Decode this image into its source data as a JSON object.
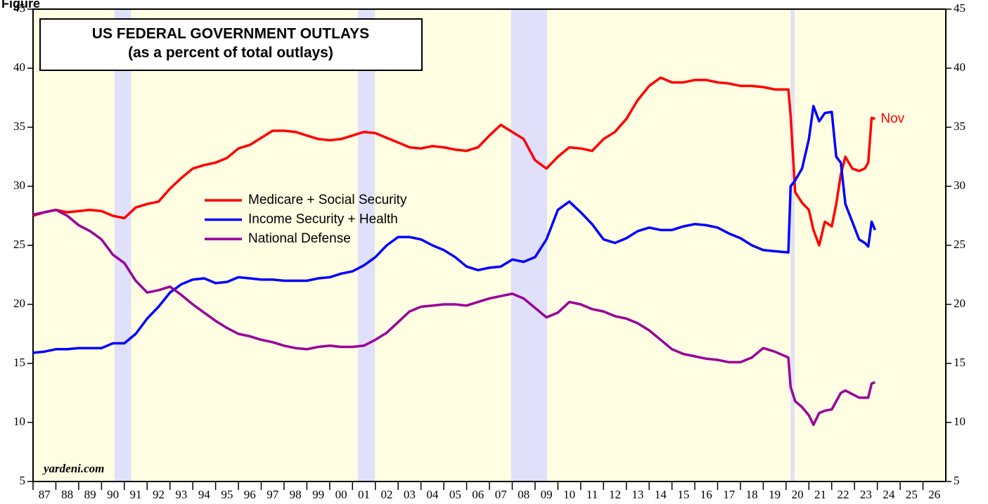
{
  "chart_data": {
    "type": "line",
    "figure_label": "Figure",
    "title": "US FEDERAL GOVERNMENT OUTLAYS",
    "subtitle": "(as a percent of total outlays)",
    "source": "yardeni.com",
    "annotation": "Nov",
    "legend": "middle-left",
    "xlim": [
      1987,
      2027
    ],
    "xticks": [
      {
        "value": 1987.5,
        "label": "87"
      },
      {
        "value": 1988.5,
        "label": "88"
      },
      {
        "value": 1989.5,
        "label": "89"
      },
      {
        "value": 1990.5,
        "label": "90"
      },
      {
        "value": 1991.5,
        "label": "91"
      },
      {
        "value": 1992.5,
        "label": "92"
      },
      {
        "value": 1993.5,
        "label": "93"
      },
      {
        "value": 1994.5,
        "label": "94"
      },
      {
        "value": 1995.5,
        "label": "95"
      },
      {
        "value": 1996.5,
        "label": "96"
      },
      {
        "value": 1997.5,
        "label": "97"
      },
      {
        "value": 1998.5,
        "label": "98"
      },
      {
        "value": 1999.5,
        "label": "99"
      },
      {
        "value": 2000.5,
        "label": "00"
      },
      {
        "value": 2001.5,
        "label": "01"
      },
      {
        "value": 2002.5,
        "label": "02"
      },
      {
        "value": 2003.5,
        "label": "03"
      },
      {
        "value": 2004.5,
        "label": "04"
      },
      {
        "value": 2005.5,
        "label": "05"
      },
      {
        "value": 2006.5,
        "label": "06"
      },
      {
        "value": 2007.5,
        "label": "07"
      },
      {
        "value": 2008.5,
        "label": "08"
      },
      {
        "value": 2009.5,
        "label": "09"
      },
      {
        "value": 2010.5,
        "label": "10"
      },
      {
        "value": 2011.5,
        "label": "11"
      },
      {
        "value": 2012.5,
        "label": "12"
      },
      {
        "value": 2013.5,
        "label": "13"
      },
      {
        "value": 2014.5,
        "label": "14"
      },
      {
        "value": 2015.5,
        "label": "15"
      },
      {
        "value": 2016.5,
        "label": "16"
      },
      {
        "value": 2017.5,
        "label": "17"
      },
      {
        "value": 2018.5,
        "label": "18"
      },
      {
        "value": 2019.5,
        "label": "19"
      },
      {
        "value": 2020.5,
        "label": "20"
      },
      {
        "value": 2021.5,
        "label": "21"
      },
      {
        "value": 2022.5,
        "label": "22"
      },
      {
        "value": 2023.5,
        "label": "23"
      },
      {
        "value": 2024.5,
        "label": "24"
      },
      {
        "value": 2025.5,
        "label": "25"
      },
      {
        "value": 2026.5,
        "label": "26"
      }
    ],
    "ylim": [
      5,
      45
    ],
    "yticks": [
      5,
      10,
      15,
      20,
      25,
      30,
      35,
      40,
      45
    ],
    "y2lim": [
      5,
      45
    ],
    "y2ticks": [
      5,
      10,
      15,
      20,
      25,
      30,
      35,
      40,
      45
    ],
    "shaded_periods": [
      [
        1990.57,
        1991.3
      ],
      [
        2001.24,
        2001.98
      ],
      [
        2007.95,
        2009.53
      ],
      [
        2020.2,
        2020.37
      ]
    ],
    "shade_color": "#e0e0fa",
    "background_color": "#fffde2",
    "x": [
      1987.0,
      1987.5,
      1988.0,
      1988.5,
      1989.0,
      1989.5,
      1990.0,
      1990.5,
      1991.0,
      1991.5,
      1992.0,
      1992.5,
      1993.0,
      1993.5,
      1994.0,
      1994.5,
      1995.0,
      1995.5,
      1996.0,
      1996.5,
      1997.0,
      1997.5,
      1998.0,
      1998.5,
      1999.0,
      1999.5,
      2000.0,
      2000.5,
      2001.0,
      2001.5,
      2002.0,
      2002.5,
      2003.0,
      2003.5,
      2004.0,
      2004.5,
      2005.0,
      2005.5,
      2006.0,
      2006.5,
      2007.0,
      2007.5,
      2008.0,
      2008.5,
      2009.0,
      2009.5,
      2010.0,
      2010.5,
      2011.0,
      2011.5,
      2012.0,
      2012.5,
      2013.0,
      2013.5,
      2014.0,
      2014.5,
      2015.0,
      2015.5,
      2016.0,
      2016.5,
      2017.0,
      2017.5,
      2018.0,
      2018.5,
      2019.0,
      2019.5,
      2020.1,
      2020.2,
      2020.4,
      2020.7,
      2021.0,
      2021.2,
      2021.45,
      2021.7,
      2022.0,
      2022.2,
      2022.4,
      2022.6,
      2022.9,
      2023.2,
      2023.45,
      2023.6,
      2023.75,
      2023.9
    ],
    "series": [
      {
        "name": "Medicare + Social Security",
        "color": "#ff0000",
        "values": [
          27.5,
          27.8,
          28.0,
          27.8,
          27.9,
          28.0,
          27.9,
          27.5,
          27.3,
          28.2,
          28.5,
          28.7,
          29.8,
          30.7,
          31.5,
          31.8,
          32.0,
          32.4,
          33.2,
          33.5,
          34.1,
          34.7,
          34.7,
          34.6,
          34.3,
          34.0,
          33.9,
          34.0,
          34.3,
          34.6,
          34.5,
          34.1,
          33.7,
          33.3,
          33.2,
          33.4,
          33.3,
          33.1,
          33.0,
          33.3,
          34.3,
          35.2,
          34.6,
          34.0,
          32.2,
          31.5,
          32.5,
          33.3,
          33.2,
          33.0,
          34.0,
          34.6,
          35.7,
          37.3,
          38.5,
          39.2,
          38.8,
          38.8,
          39.0,
          39.0,
          38.8,
          38.7,
          38.5,
          38.5,
          38.4,
          38.2,
          38.2,
          36.0,
          29.5,
          28.6,
          28.0,
          26.3,
          25.0,
          27.0,
          26.6,
          28.5,
          31.0,
          32.5,
          31.5,
          31.3,
          31.5,
          32.0,
          35.8,
          35.7
        ]
      },
      {
        "name": "Income Security + Health",
        "color": "#0000ff",
        "values": [
          15.9,
          16.0,
          16.2,
          16.2,
          16.3,
          16.3,
          16.3,
          16.7,
          16.7,
          17.5,
          18.8,
          19.8,
          21.0,
          21.7,
          22.1,
          22.2,
          21.8,
          21.9,
          22.3,
          22.2,
          22.1,
          22.1,
          22.0,
          22.0,
          22.0,
          22.2,
          22.3,
          22.6,
          22.8,
          23.3,
          24.0,
          25.0,
          25.7,
          25.7,
          25.5,
          25.0,
          24.6,
          24.0,
          23.2,
          22.9,
          23.1,
          23.2,
          23.8,
          23.6,
          24.0,
          25.5,
          28.0,
          28.7,
          27.8,
          26.8,
          25.5,
          25.2,
          25.6,
          26.2,
          26.5,
          26.3,
          26.3,
          26.6,
          26.8,
          26.7,
          26.5,
          26.0,
          25.6,
          25.0,
          24.6,
          24.5,
          24.4,
          30.0,
          30.5,
          31.5,
          34.0,
          36.8,
          35.5,
          36.2,
          36.3,
          32.5,
          32.0,
          28.5,
          27.0,
          25.5,
          25.2,
          24.9,
          27.0,
          26.3
        ]
      },
      {
        "name": "National Defense",
        "color": "#990099",
        "values": [
          27.6,
          27.8,
          28.0,
          27.5,
          26.7,
          26.2,
          25.5,
          24.2,
          23.5,
          22.0,
          21.0,
          21.2,
          21.5,
          20.8,
          20.0,
          19.3,
          18.6,
          18.0,
          17.5,
          17.3,
          17.0,
          16.8,
          16.5,
          16.3,
          16.2,
          16.4,
          16.5,
          16.4,
          16.4,
          16.5,
          17.0,
          17.6,
          18.5,
          19.4,
          19.8,
          19.9,
          20.0,
          20.0,
          19.9,
          20.2,
          20.5,
          20.7,
          20.9,
          20.5,
          19.7,
          18.9,
          19.3,
          20.2,
          20.0,
          19.6,
          19.4,
          19.0,
          18.8,
          18.4,
          17.8,
          17.0,
          16.2,
          15.8,
          15.6,
          15.4,
          15.3,
          15.1,
          15.1,
          15.5,
          16.3,
          16.0,
          15.5,
          13.0,
          11.8,
          11.3,
          10.6,
          9.8,
          10.8,
          11.0,
          11.1,
          11.8,
          12.5,
          12.7,
          12.4,
          12.1,
          12.1,
          12.1,
          13.3,
          13.4
        ]
      }
    ]
  }
}
